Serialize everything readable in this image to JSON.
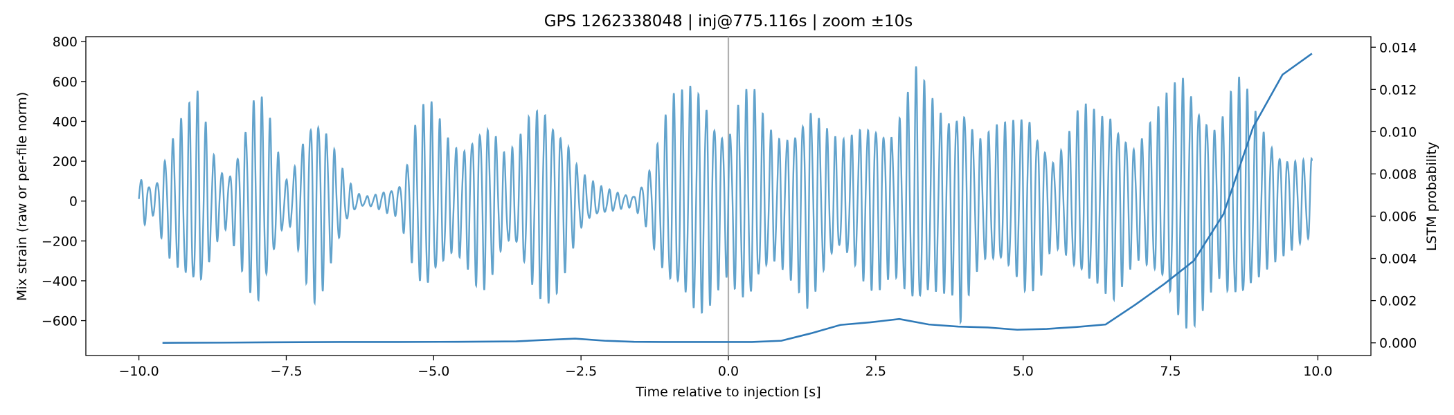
{
  "chart_data": {
    "type": "line",
    "title": "GPS 1262338048 | inj@775.116s | zoom ±10s",
    "xlabel": "Time relative to injection [s]",
    "ylabel_left": "Mix strain (raw or per-file norm)",
    "ylabel_right": "LSTM probability",
    "xlim": [
      -10.9,
      10.9
    ],
    "ylim_left": [
      -775,
      825
    ],
    "ylim_right": [
      -0.0006,
      0.0145
    ],
    "x_ticks": [
      -10.0,
      -7.5,
      -5.0,
      -2.5,
      0.0,
      2.5,
      5.0,
      7.5,
      10.0
    ],
    "x_tick_labels": [
      "−10.0",
      "−7.5",
      "−5.0",
      "−2.5",
      "0.0",
      "2.5",
      "5.0",
      "7.5",
      "10.0"
    ],
    "y_left_ticks": [
      -600,
      -400,
      -200,
      0,
      200,
      400,
      600,
      800
    ],
    "y_left_tick_labels": [
      "−600",
      "−400",
      "−200",
      "0",
      "200",
      "400",
      "600",
      "800"
    ],
    "y_right_ticks": [
      0.0,
      0.002,
      0.004,
      0.006,
      0.008,
      0.01,
      0.012,
      0.014
    ],
    "y_right_tick_labels": [
      "0.000",
      "0.002",
      "0.004",
      "0.006",
      "0.008",
      "0.010",
      "0.012",
      "0.014"
    ],
    "injection_marker_x": 0.0,
    "grid": false,
    "series": [
      {
        "name": "Mix strain",
        "axis": "left",
        "color": "#5a9ec9",
        "kind": "oscillation",
        "x_range": [
          -10.0,
          9.9
        ],
        "carrier_hz": 7.3,
        "envelope": {
          "t": [
            -10.0,
            -9.9,
            -9.75,
            -9.5,
            -9.25,
            -9.0,
            -8.85,
            -8.7,
            -8.5,
            -8.35,
            -8.15,
            -8.0,
            -7.8,
            -7.65,
            -7.5,
            -7.35,
            -7.2,
            -7.05,
            -6.9,
            -6.7,
            -6.5,
            -6.3,
            -6.15,
            -6.0,
            -5.8,
            -5.6,
            -5.45,
            -5.3,
            -5.1,
            -4.9,
            -4.7,
            -4.5,
            -4.3,
            -4.15,
            -4.0,
            -3.8,
            -3.6,
            -3.45,
            -3.3,
            -3.1,
            -2.9,
            -2.7,
            -2.55,
            -2.4,
            -2.2,
            -2.0,
            -1.8,
            -1.6,
            -1.4,
            -1.25,
            -1.1,
            -0.95,
            -0.8,
            -0.6,
            -0.4,
            -0.2,
            0.0,
            0.2,
            0.4,
            0.6,
            0.8,
            1.0,
            1.2,
            1.35,
            1.5,
            1.7,
            1.9,
            2.1,
            2.3,
            2.5,
            2.65,
            2.8,
            3.0,
            3.2,
            3.4,
            3.6,
            3.8,
            3.95,
            4.1,
            4.3,
            4.5,
            4.7,
            4.9,
            5.1,
            5.3,
            5.5,
            5.7,
            5.9,
            6.1,
            6.3,
            6.5,
            6.7,
            6.9,
            7.1,
            7.3,
            7.5,
            7.7,
            7.9,
            8.1,
            8.3,
            8.5,
            8.7,
            8.9,
            9.1,
            9.3,
            9.5,
            9.7,
            9.9
          ],
          "amp": [
            140,
            120,
            70,
            300,
            450,
            560,
            400,
            230,
            130,
            260,
            460,
            610,
            450,
            260,
            110,
            200,
            380,
            520,
            480,
            300,
            130,
            40,
            25,
            35,
            60,
            80,
            220,
            440,
            540,
            420,
            300,
            300,
            420,
            460,
            400,
            250,
            280,
            400,
            500,
            540,
            460,
            320,
            180,
            120,
            80,
            60,
            40,
            30,
            130,
            270,
            420,
            540,
            560,
            620,
            590,
            460,
            380,
            560,
            600,
            430,
            340,
            380,
            460,
            560,
            480,
            360,
            300,
            350,
            430,
            470,
            420,
            380,
            530,
            690,
            560,
            500,
            480,
            620,
            460,
            330,
            380,
            400,
            440,
            500,
            380,
            230,
            300,
            450,
            500,
            470,
            520,
            420,
            300,
            380,
            480,
            580,
            700,
            640,
            520,
            400,
            560,
            640,
            500,
            380,
            300,
            260,
            230,
            220
          ]
        }
      },
      {
        "name": "LSTM probability",
        "axis": "right",
        "color": "#2f7ab8",
        "x": [
          -9.6,
          -8.6,
          -7.6,
          -6.6,
          -5.6,
          -4.6,
          -3.6,
          -3.1,
          -2.6,
          -2.1,
          -1.6,
          -1.1,
          -0.6,
          0.0,
          0.4,
          0.9,
          1.4,
          1.9,
          2.4,
          2.9,
          3.4,
          3.9,
          4.4,
          4.9,
          5.4,
          5.9,
          6.4,
          6.9,
          7.4,
          7.9,
          8.4,
          8.9,
          9.4,
          9.9
        ],
        "y": [
          0.0,
          1e-05,
          3e-05,
          4e-05,
          4e-05,
          5e-05,
          7e-05,
          0.00014,
          0.0002,
          0.0001,
          5e-05,
          4e-05,
          4e-05,
          4e-05,
          4e-05,
          0.0001,
          0.00045,
          0.00085,
          0.00097,
          0.00113,
          0.00087,
          0.00077,
          0.00073,
          0.00062,
          0.00066,
          0.00075,
          0.00087,
          0.0018,
          0.0028,
          0.0039,
          0.0061,
          0.0102,
          0.0127,
          0.0137
        ]
      }
    ]
  }
}
